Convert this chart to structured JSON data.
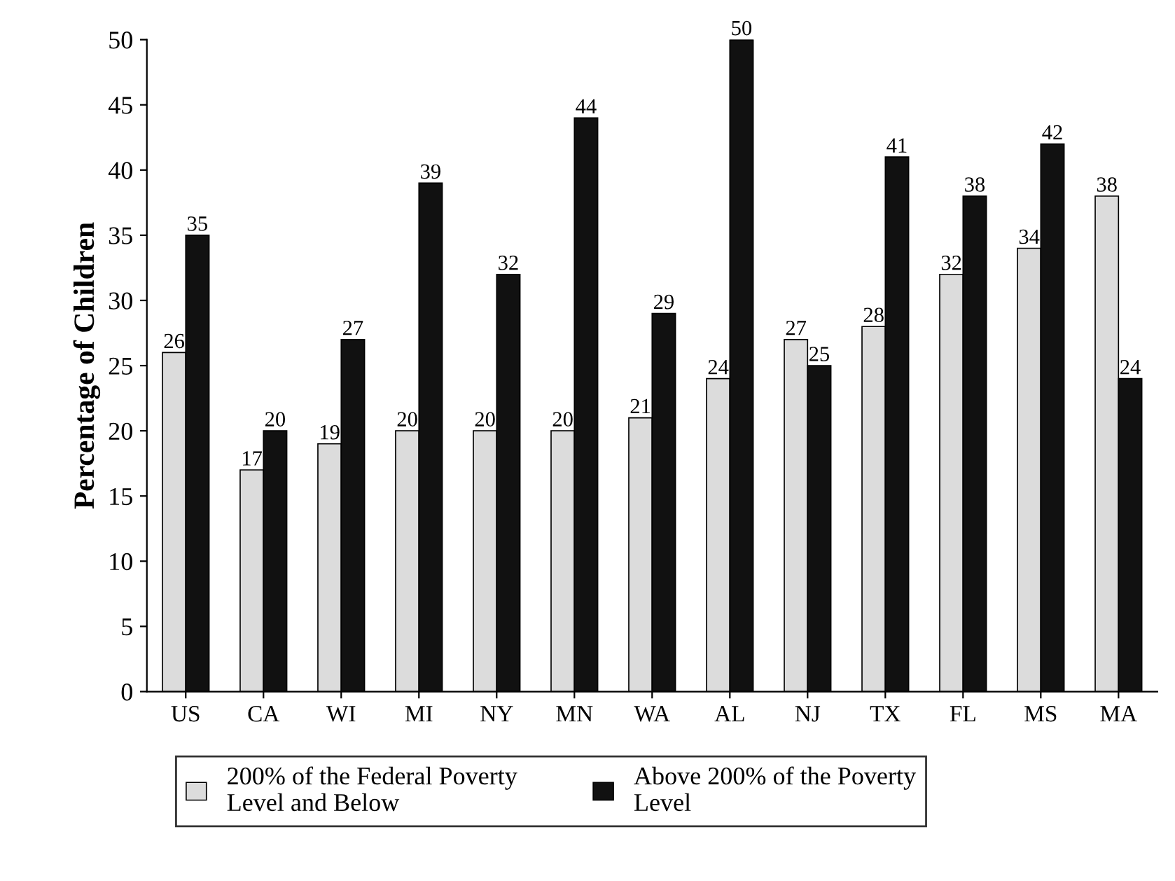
{
  "chart_data": {
    "type": "bar",
    "ylabel": "Percentage of Children",
    "categories": [
      "US",
      "CA",
      "WI",
      "MI",
      "NY",
      "MN",
      "WA",
      "AL",
      "NJ",
      "TX",
      "FL",
      "MS",
      "MA"
    ],
    "series": [
      {
        "name": "200% of the Federal Poverty\nLevel and Below",
        "color": "#dcdcdc",
        "values": [
          26,
          17,
          19,
          20,
          20,
          20,
          21,
          24,
          27,
          28,
          32,
          34,
          38
        ]
      },
      {
        "name": "Above 200% of the Poverty\nLevel",
        "color": "#111111",
        "values": [
          35,
          20,
          27,
          39,
          32,
          44,
          29,
          50,
          25,
          41,
          38,
          42,
          24
        ]
      }
    ],
    "ylim": [
      0,
      50
    ],
    "yticks": [
      0,
      5,
      10,
      15,
      20,
      25,
      30,
      35,
      40,
      45,
      50
    ],
    "data_labels": true,
    "legend": "bottom",
    "grid": false
  }
}
